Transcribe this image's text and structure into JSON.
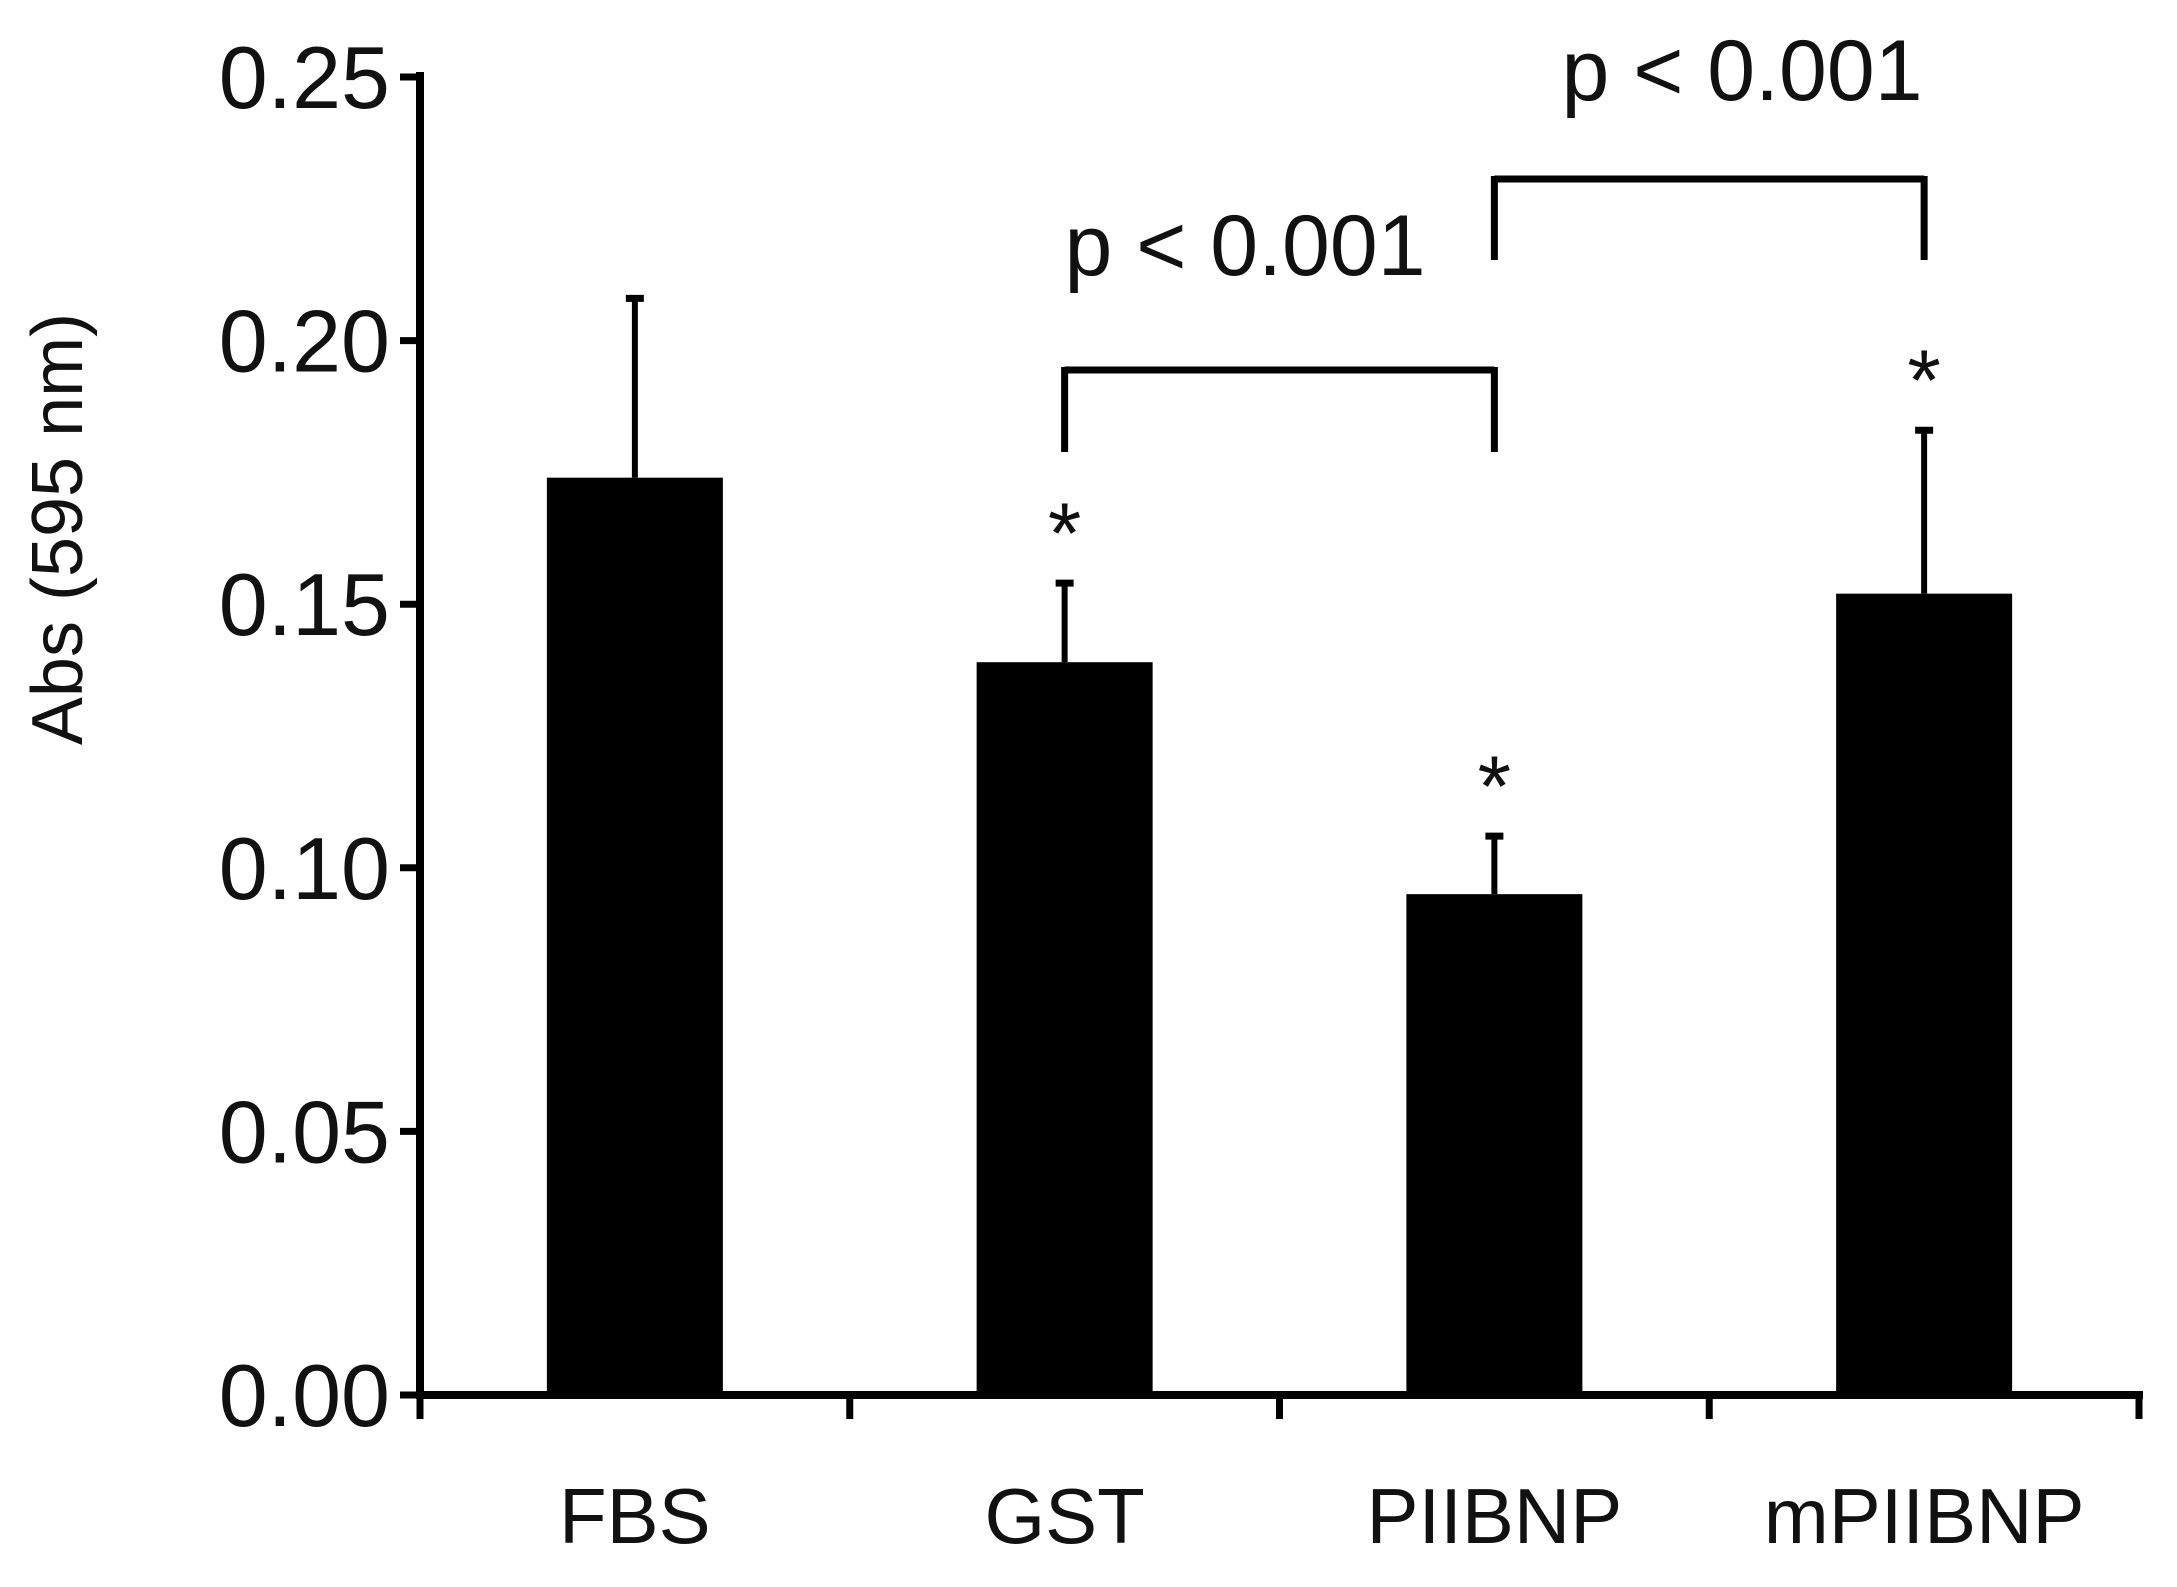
{
  "chart_data": {
    "type": "bar",
    "title": "",
    "xlabel": "",
    "ylabel": "Abs (595 nm)",
    "ylim": [
      0,
      0.25
    ],
    "yticks": [
      "0.00",
      "0.05",
      "0.10",
      "0.15",
      "0.20",
      "0.25"
    ],
    "grid": false,
    "legend": "none",
    "categories": [
      "FBS",
      "GST",
      "PIIBNP",
      "mPIIBNP"
    ],
    "values": [
      0.174,
      0.139,
      0.095,
      0.152
    ],
    "errors": [
      0.034,
      0.015,
      0.011,
      0.031
    ],
    "significance_marks": [
      "",
      "*",
      "*",
      "*"
    ],
    "comparisons": [
      {
        "from": "GST",
        "to": "PIIBNP",
        "label": "p < 0.001"
      },
      {
        "from": "PIIBNP",
        "to": "mPIIBNP",
        "label": "p < 0.001"
      }
    ],
    "bar_color": "#000000"
  }
}
